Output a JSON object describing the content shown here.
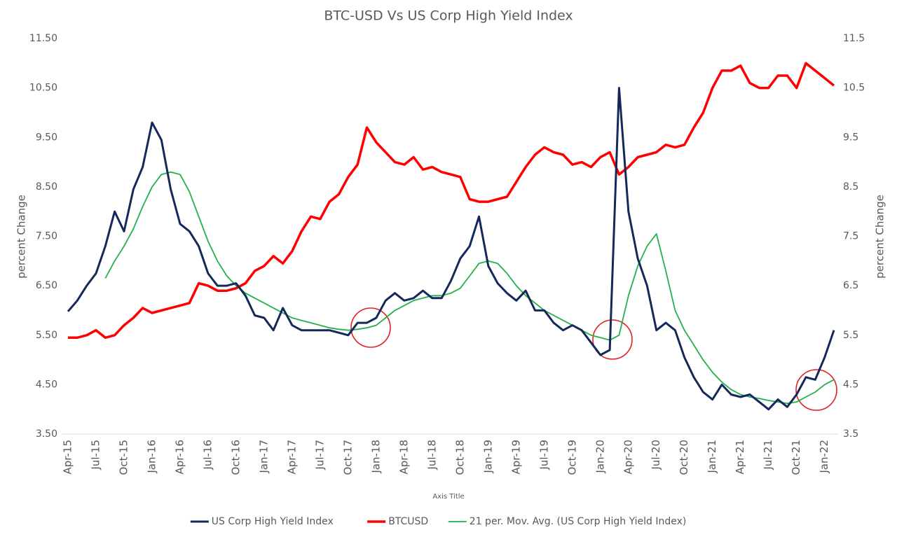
{
  "chart_data": {
    "type": "line",
    "title": "BTC-USD Vs US Corp High Yield Index",
    "x_label": "Axis Title",
    "y_label": "percent Change",
    "y2_label": "percent Change",
    "categories": [
      "Apr-15",
      null,
      null,
      "Jul-15",
      null,
      null,
      "Oct-15",
      null,
      null,
      "Jan-16",
      null,
      null,
      "Apr-16",
      null,
      null,
      "Jul-16",
      null,
      null,
      "Oct-16",
      null,
      null,
      "Jan-17",
      null,
      null,
      "Apr-17",
      null,
      null,
      "Jul-17",
      null,
      null,
      "Oct-17",
      null,
      null,
      "Jan-18",
      null,
      null,
      "Apr-18",
      null,
      null,
      "Jul-18",
      null,
      null,
      "Oct-18",
      null,
      null,
      "Jan-19",
      null,
      null,
      "Apr-19",
      null,
      null,
      "Jul-19",
      null,
      null,
      "Oct-19",
      null,
      null,
      "Jan-20",
      null,
      null,
      "Apr-20",
      null,
      null,
      "Jul-20",
      null,
      null,
      "Oct-20",
      null,
      null,
      "Jan-21",
      null,
      null,
      "Apr-21",
      null,
      null,
      "Jul-21",
      null,
      null,
      "Oct-21",
      null,
      null,
      "Jan-22",
      null
    ],
    "series": [
      {
        "name": "US Corp High Yield Index",
        "color": "#14285a",
        "width": 3,
        "values": [
          5.98,
          6.2,
          6.5,
          6.75,
          7.3,
          8.0,
          7.6,
          8.45,
          8.9,
          9.8,
          9.45,
          8.45,
          7.75,
          7.6,
          7.3,
          6.75,
          6.5,
          6.5,
          6.55,
          6.3,
          5.9,
          5.85,
          5.6,
          6.05,
          5.7,
          5.6,
          5.6,
          5.6,
          5.6,
          5.55,
          5.5,
          5.75,
          5.75,
          5.85,
          6.2,
          6.35,
          6.2,
          6.25,
          6.4,
          6.25,
          6.25,
          6.6,
          7.05,
          7.3,
          7.9,
          6.9,
          6.55,
          6.35,
          6.2,
          6.4,
          6.0,
          6.0,
          5.75,
          5.6,
          5.7,
          5.6,
          5.35,
          5.1,
          5.2,
          10.5,
          8.0,
          7.05,
          6.5,
          5.6,
          5.75,
          5.6,
          5.05,
          4.65,
          4.35,
          4.2,
          4.5,
          4.3,
          4.25,
          4.3,
          4.15,
          4.0,
          4.2,
          4.05,
          4.3,
          4.65,
          4.6,
          5.05,
          5.6
        ]
      },
      {
        "name": "BTCUSD",
        "color": "#ff0000",
        "width": 3.5,
        "axis": "y2",
        "values": [
          5.45,
          5.45,
          5.5,
          5.6,
          5.45,
          5.5,
          5.7,
          5.85,
          6.05,
          5.95,
          6.0,
          6.05,
          6.1,
          6.15,
          6.55,
          6.5,
          6.4,
          6.4,
          6.45,
          6.55,
          6.8,
          6.9,
          7.1,
          6.95,
          7.2,
          7.6,
          7.9,
          7.85,
          8.2,
          8.35,
          8.7,
          8.95,
          9.7,
          9.4,
          9.2,
          9.0,
          8.95,
          9.1,
          8.85,
          8.9,
          8.8,
          8.75,
          8.7,
          8.25,
          8.2,
          8.2,
          8.25,
          8.3,
          8.6,
          8.9,
          9.15,
          9.3,
          9.2,
          9.15,
          8.95,
          9.0,
          8.9,
          9.1,
          9.2,
          8.75,
          8.9,
          9.1,
          9.15,
          9.2,
          9.35,
          9.3,
          9.35,
          9.7,
          10.0,
          10.5,
          10.85,
          10.85,
          10.95,
          10.6,
          10.5,
          10.5,
          10.75,
          10.75,
          10.5,
          11.0,
          10.85,
          10.7,
          10.55
        ]
      },
      {
        "name": "21 per. Mov. Avg. (US Corp High Yield Index)",
        "color": "#22b14c",
        "width": 1.8,
        "values": [
          null,
          null,
          null,
          null,
          6.65,
          7.0,
          7.3,
          7.65,
          8.1,
          8.5,
          8.75,
          8.8,
          8.75,
          8.4,
          7.9,
          7.4,
          7.0,
          6.7,
          6.5,
          6.35,
          6.25,
          6.15,
          6.05,
          5.95,
          5.85,
          5.8,
          5.75,
          5.7,
          5.65,
          5.62,
          5.6,
          5.62,
          5.65,
          5.7,
          5.85,
          6.0,
          6.1,
          6.2,
          6.25,
          6.3,
          6.3,
          6.35,
          6.45,
          6.7,
          6.95,
          7.0,
          6.95,
          6.75,
          6.5,
          6.3,
          6.15,
          6.0,
          5.9,
          5.8,
          5.7,
          5.6,
          5.5,
          5.45,
          5.4,
          5.5,
          6.3,
          6.9,
          7.3,
          7.55,
          6.8,
          6.0,
          5.6,
          5.3,
          5.0,
          4.75,
          4.55,
          4.4,
          4.3,
          4.25,
          4.22,
          4.18,
          4.15,
          4.12,
          4.15,
          4.25,
          4.35,
          4.5,
          4.6
        ]
      }
    ],
    "ylim": [
      3.5,
      11.5
    ],
    "yticks": [
      {
        "value": 3.5,
        "label": "3.50"
      },
      {
        "value": 4.5,
        "label": "4.50"
      },
      {
        "value": 5.5,
        "label": "5.50"
      },
      {
        "value": 6.5,
        "label": "6.50"
      },
      {
        "value": 7.5,
        "label": "7.50"
      },
      {
        "value": 8.5,
        "label": "8.50"
      },
      {
        "value": 9.5,
        "label": "9.50"
      },
      {
        "value": 10.5,
        "label": "10.50"
      },
      {
        "value": 11.5,
        "label": "11.50"
      }
    ],
    "y2lim": [
      3.5,
      11.5
    ],
    "y2ticks": [
      3.5,
      4.5,
      5.5,
      6.5,
      7.5,
      8.5,
      9.5,
      10.5,
      11.5
    ],
    "grid": false,
    "legend": "bottom"
  }
}
